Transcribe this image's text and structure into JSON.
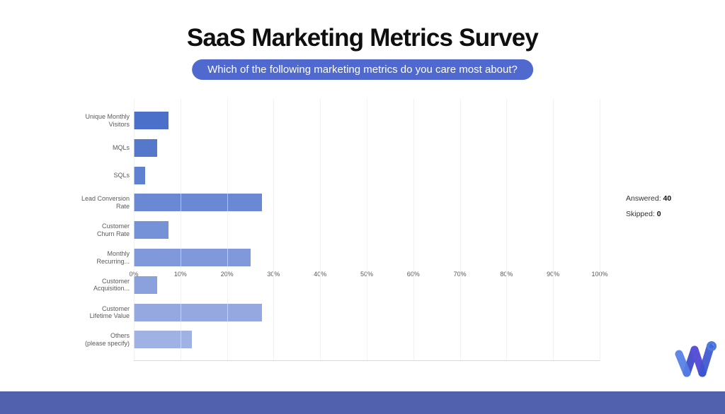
{
  "page": {
    "title": "SaaS Marketing Metrics Survey",
    "question": "Which of the following marketing metrics do you care most about?"
  },
  "stats": {
    "answered_label": "Answered:",
    "answered_value": "40",
    "skipped_label": "Skipped:",
    "skipped_value": "0"
  },
  "chart_data": {
    "type": "bar",
    "orientation": "horizontal",
    "title": "Which of the following marketing metrics do you care most about?",
    "categories": [
      "Unique Monthly Visitors",
      "MQLs",
      "SQLs",
      "Lead Conversion Rate",
      "Customer Churn Rate",
      "Monthly Recurring...",
      "Customer Acquisition...",
      "Customer Lifetime Value",
      "Others (please specify)"
    ],
    "category_lines": [
      [
        "Unique Monthly",
        "Visitors"
      ],
      [
        "MQLs"
      ],
      [
        "SQLs"
      ],
      [
        "Lead Conversion",
        "Rate"
      ],
      [
        "Customer",
        "Churn Rate"
      ],
      [
        "Monthly",
        "Recurring..."
      ],
      [
        "Customer",
        "Acquisition..."
      ],
      [
        "Customer",
        "Lifetime Value"
      ],
      [
        "Others",
        "(please specify)"
      ]
    ],
    "values": [
      7.5,
      5,
      2.5,
      27.5,
      7.5,
      25,
      5,
      27.5,
      12.5
    ],
    "unit": "%",
    "xlim": [
      0,
      100
    ],
    "x_ticks": [
      "0%",
      "10%",
      "20%",
      "30%",
      "40%",
      "50%",
      "60%",
      "70%",
      "80%",
      "90%",
      "100%"
    ],
    "bar_colors": [
      "#4A70CA",
      "#5578CD",
      "#6080D0",
      "#6A88D3",
      "#7591D7",
      "#8099DA",
      "#8BA1DD",
      "#95A9E0",
      "#A0B1E3"
    ],
    "grid": true,
    "legend": false
  },
  "colors": {
    "pill_bg": "#4f69ce",
    "gridline": "#e4e4e4",
    "axis_text": "#5a5a5a",
    "bottom_bar": "#5161ae",
    "logo_light_blue": "#5380e6",
    "logo_indigo": "#4a52cc",
    "logo_purple": "#5a52d6",
    "logo_blue": "#3d55cf",
    "logo_ring": "#4a7be0"
  },
  "branding": {
    "logo_name": "w-degree-logo"
  }
}
